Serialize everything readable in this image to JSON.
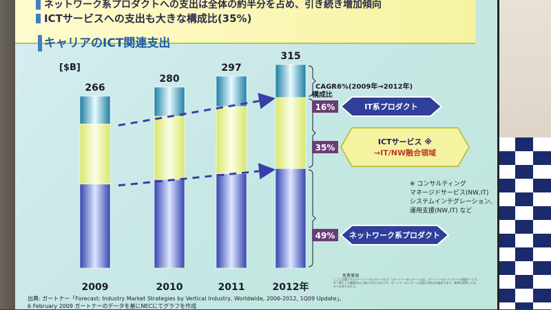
{
  "header": {
    "line1": "ネットワーク系プロダクトへの支出は全体の約半分を占め、引き続き増加傾向",
    "line2": "ICTサービスへの支出も大きな構成比(35%)"
  },
  "section_title": "キャリアのICT関連支出",
  "unit_label": "[$B]",
  "cagr_label": "CAGR6%(2009年→2012年)",
  "share_header": "構成比",
  "segments": [
    {
      "pct": "16%",
      "label": "IT系プロダクト",
      "label2": ""
    },
    {
      "pct": "35%",
      "label": "ICTサービス ※",
      "label2": "→IT/NW融合領域"
    },
    {
      "pct": "49%",
      "label": "ネットワーク系プロダクト",
      "label2": ""
    }
  ],
  "footnote": [
    "※ コンサルティング",
    "マネージドサービス(NW,IT)",
    "システムインテグレーション、",
    "運用支援(NW,IT) など"
  ],
  "source": {
    "line1": "出典: ガートナー「Forecast: Industry Market Strategies by Vertical Industry, Worldwide, 2006-2012, 1Q09 Update」、",
    "line2": "6 February 2009 ガートナーのデータを基にNECにてグラフを作成"
  },
  "disclaimer_title": "免責事項",
  "disclaimer_body": "ここに記載されたガートナーのレポート(以下「ガートナーのレポート」)は、ガートナーのシンジケート調査サービスの一環として顧客向けに発行されたものです。ガートナーのレポートは発行日時点の意見であり、事実を表明したものではありません。",
  "colors": {
    "bar_top": "#2a8fb0",
    "bar_mid": "#eaf38a",
    "bar_bottom": "#3d4fb8",
    "arrow": "#3a3ea8",
    "callout_blue": "#2f3f9a",
    "callout_yellow": "#f5f3a0",
    "pct_box": "#6a3d76"
  },
  "chart_data": {
    "type": "bar",
    "stacked": true,
    "categories": [
      "2009",
      "2010",
      "2011",
      "2012年"
    ],
    "totals": [
      266,
      280,
      297,
      315
    ],
    "series": [
      {
        "name": "ネットワーク系プロダクト",
        "values": [
          130,
          137,
          146,
          154
        ]
      },
      {
        "name": "ICTサービス",
        "values": [
          93,
          98,
          104,
          110
        ]
      },
      {
        "name": "IT系プロダクト",
        "values": [
          43,
          45,
          47,
          51
        ]
      }
    ],
    "title": "キャリアのICT関連支出",
    "ylabel": "[$B]",
    "ylim": [
      0,
      340
    ]
  }
}
